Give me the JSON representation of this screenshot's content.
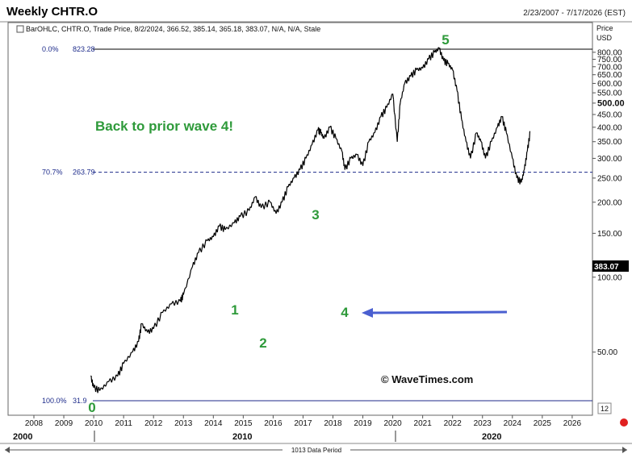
{
  "window": {
    "title": "Weekly CHTR.O",
    "date_range": "2/23/2007 - 7/17/2026 (EST)"
  },
  "legend_line": "BarOHLC, CHTR.O, Trade Price, 8/2/2024, 366.52, 385.14, 365.18, 383.07, N/A, N/A, Stale",
  "price_header": [
    "Price",
    "USD"
  ],
  "last_price_label": "383.07",
  "zoom_box": "12",
  "footer_label": "1013 Data Period",
  "colors": {
    "ohlc": "#000000",
    "wave_label": "#2e9a3a",
    "fib_text": "#1c2a8a",
    "arrow": "#4a5fd0",
    "last_price_bg": "#000000"
  },
  "chart_data": {
    "type": "line",
    "title": "Weekly CHTR.O",
    "ylabel": "Price USD",
    "xlim": [
      2007.8,
      2026.6
    ],
    "ylim": [
      35,
      840
    ],
    "y_scale": "log",
    "x_ticks": [
      "2008",
      "2009",
      "2010",
      "2011",
      "2012",
      "2013",
      "2014",
      "2015",
      "2016",
      "2017",
      "2018",
      "2019",
      "2020",
      "2021",
      "2022",
      "2023",
      "2024",
      "2025",
      "2026"
    ],
    "y_ticks": [
      "50.00",
      "100.00",
      "150.00",
      "200.00",
      "250.00",
      "300.00",
      "350.00",
      "400.00",
      "450.00",
      "500.00",
      "550.00",
      "600.00",
      "650.00",
      "700.00",
      "750.00",
      "800.00"
    ],
    "era_labels": [
      "2000",
      "2010",
      "2020"
    ],
    "series": [
      {
        "x": [
          2009.9,
          2010.0,
          2010.2,
          2010.5,
          2010.8,
          2011.0,
          2011.3,
          2011.5,
          2011.6,
          2011.8,
          2012.0,
          2012.3,
          2012.6,
          2012.9,
          2013.0,
          2013.3,
          2013.5,
          2013.8,
          2014.0,
          2014.2,
          2014.4,
          2014.7,
          2014.9,
          2015.2,
          2015.4,
          2015.6,
          2015.9,
          2016.1,
          2016.3,
          2016.5,
          2016.7,
          2016.9,
          2017.1,
          2017.3,
          2017.5,
          2017.6,
          2017.7,
          2017.9,
          2018.1,
          2018.3,
          2018.4,
          2018.6,
          2018.8,
          2019.0,
          2019.2,
          2019.4,
          2019.6,
          2019.8,
          2020.0,
          2020.15,
          2020.25,
          2020.4,
          2020.6,
          2020.8,
          2021.0,
          2021.2,
          2021.4,
          2021.55,
          2021.7,
          2021.85,
          2022.0,
          2022.15,
          2022.3,
          2022.45,
          2022.6,
          2022.8,
          2022.95,
          2023.1,
          2023.3,
          2023.5,
          2023.65,
          2023.8,
          2024.0,
          2024.15,
          2024.3,
          2024.4,
          2024.5,
          2024.6
        ],
        "values": [
          40,
          36,
          35,
          38,
          40,
          45,
          50,
          55,
          65,
          60,
          62,
          72,
          78,
          80,
          85,
          110,
          125,
          140,
          145,
          160,
          155,
          165,
          175,
          185,
          210,
          190,
          200,
          180,
          200,
          230,
          250,
          270,
          300,
          340,
          390,
          380,
          360,
          400,
          360,
          320,
          270,
          300,
          310,
          280,
          350,
          380,
          440,
          480,
          545,
          350,
          500,
          600,
          640,
          680,
          690,
          750,
          800,
          830,
          740,
          720,
          680,
          560,
          430,
          350,
          300,
          380,
          350,
          300,
          350,
          400,
          440,
          380,
          300,
          250,
          240,
          270,
          320,
          385
        ]
      }
    ],
    "annotations": {
      "title_text": "Back to prior wave 4!",
      "wave_labels": [
        "0",
        "1",
        "2",
        "3",
        "4",
        "5"
      ],
      "copyright": "© WaveTimes.com",
      "fib_levels": [
        {
          "label": "0.0%",
          "value": "823.28"
        },
        {
          "label": "70.7%",
          "value": "263.79"
        },
        {
          "label": "100.0%",
          "value": "31.9"
        }
      ]
    }
  }
}
